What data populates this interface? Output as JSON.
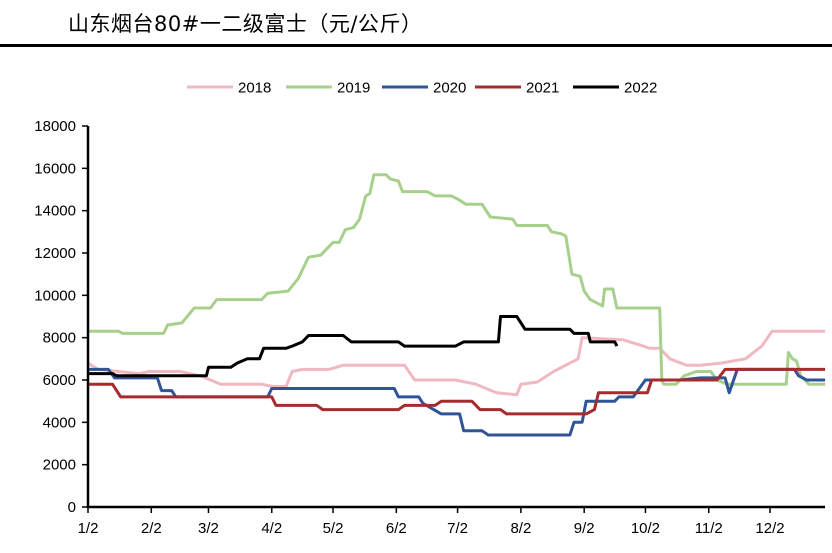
{
  "title": "山东烟台80#一二级富士（元/公斤）",
  "chart_data": {
    "type": "line",
    "title": "山东烟台80#一二级富士（元/公斤）",
    "xlabel": "",
    "ylabel": "",
    "ylim": [
      0,
      18000
    ],
    "yticks": [
      0,
      2000,
      4000,
      6000,
      8000,
      10000,
      12000,
      14000,
      16000,
      18000
    ],
    "xticks": [
      "1/2",
      "2/2",
      "3/2",
      "4/2",
      "5/2",
      "6/2",
      "7/2",
      "8/2",
      "9/2",
      "10/2",
      "11/2",
      "12/2"
    ],
    "xtick_days": [
      0,
      31,
      59,
      90,
      120,
      151,
      181,
      212,
      243,
      273,
      304,
      334
    ],
    "x_unit": "day index from 1/2",
    "xlim": [
      0,
      361
    ],
    "grid": false,
    "legend_position": "top",
    "series": [
      {
        "name": "2018",
        "color": "#f0b8c0",
        "points": [
          [
            0,
            6800
          ],
          [
            5,
            6500
          ],
          [
            15,
            6400
          ],
          [
            25,
            6300
          ],
          [
            30,
            6400
          ],
          [
            45,
            6400
          ],
          [
            55,
            6200
          ],
          [
            65,
            5800
          ],
          [
            85,
            5800
          ],
          [
            90,
            5700
          ],
          [
            97,
            5700
          ],
          [
            100,
            6400
          ],
          [
            105,
            6500
          ],
          [
            118,
            6500
          ],
          [
            125,
            6700
          ],
          [
            155,
            6700
          ],
          [
            160,
            6000
          ],
          [
            180,
            6000
          ],
          [
            190,
            5800
          ],
          [
            200,
            5400
          ],
          [
            210,
            5300
          ],
          [
            212,
            5800
          ],
          [
            220,
            5900
          ],
          [
            228,
            6400
          ],
          [
            236,
            6800
          ],
          [
            240,
            7000
          ],
          [
            242,
            8000
          ],
          [
            262,
            7900
          ],
          [
            272,
            7600
          ],
          [
            275,
            7500
          ],
          [
            280,
            7500
          ],
          [
            285,
            7000
          ],
          [
            293,
            6700
          ],
          [
            300,
            6700
          ],
          [
            310,
            6800
          ],
          [
            322,
            7000
          ],
          [
            330,
            7600
          ],
          [
            335,
            8300
          ],
          [
            361,
            8300
          ]
        ]
      },
      {
        "name": "2019",
        "color": "#a8d08d",
        "points": [
          [
            0,
            8300
          ],
          [
            15,
            8300
          ],
          [
            17,
            8200
          ],
          [
            37,
            8200
          ],
          [
            39,
            8600
          ],
          [
            46,
            8700
          ],
          [
            52,
            9400
          ],
          [
            60,
            9400
          ],
          [
            63,
            9800
          ],
          [
            85,
            9800
          ],
          [
            88,
            10100
          ],
          [
            98,
            10200
          ],
          [
            103,
            10800
          ],
          [
            108,
            11800
          ],
          [
            114,
            11900
          ],
          [
            120,
            12500
          ],
          [
            123,
            12500
          ],
          [
            126,
            13100
          ],
          [
            130,
            13200
          ],
          [
            133,
            13600
          ],
          [
            136,
            14700
          ],
          [
            138,
            14800
          ],
          [
            140,
            15700
          ],
          [
            146,
            15700
          ],
          [
            148,
            15500
          ],
          [
            152,
            15400
          ],
          [
            154,
            14900
          ],
          [
            166,
            14900
          ],
          [
            170,
            14700
          ],
          [
            178,
            14700
          ],
          [
            182,
            14500
          ],
          [
            185,
            14300
          ],
          [
            193,
            14300
          ],
          [
            197,
            13700
          ],
          [
            208,
            13600
          ],
          [
            210,
            13300
          ],
          [
            225,
            13300
          ],
          [
            227,
            13000
          ],
          [
            232,
            12900
          ],
          [
            234,
            12800
          ],
          [
            237,
            11000
          ],
          [
            241,
            10900
          ],
          [
            243,
            10200
          ],
          [
            246,
            9800
          ],
          [
            250,
            9600
          ],
          [
            252,
            9500
          ],
          [
            253,
            10300
          ],
          [
            257,
            10300
          ],
          [
            259,
            9400
          ],
          [
            280,
            9400
          ],
          [
            281,
            6000
          ],
          [
            282,
            5800
          ],
          [
            288,
            5800
          ],
          [
            292,
            6200
          ],
          [
            298,
            6400
          ],
          [
            305,
            6400
          ],
          [
            308,
            6000
          ],
          [
            313,
            5800
          ],
          [
            325,
            5800
          ],
          [
            342,
            5800
          ],
          [
            343,
            7300
          ],
          [
            345,
            7000
          ],
          [
            347,
            6900
          ],
          [
            349,
            6200
          ],
          [
            351,
            6000
          ],
          [
            353,
            5800
          ],
          [
            361,
            5800
          ]
        ]
      },
      {
        "name": "2020",
        "color": "#2f5597",
        "points": [
          [
            0,
            6500
          ],
          [
            10,
            6500
          ],
          [
            13,
            6100
          ],
          [
            34,
            6100
          ],
          [
            36,
            5500
          ],
          [
            41,
            5500
          ],
          [
            43,
            5200
          ],
          [
            88,
            5200
          ],
          [
            90,
            5600
          ],
          [
            150,
            5600
          ],
          [
            152,
            5200
          ],
          [
            162,
            5200
          ],
          [
            164,
            4900
          ],
          [
            173,
            4400
          ],
          [
            182,
            4400
          ],
          [
            184,
            3600
          ],
          [
            193,
            3600
          ],
          [
            196,
            3400
          ],
          [
            236,
            3400
          ],
          [
            238,
            4000
          ],
          [
            242,
            4000
          ],
          [
            244,
            5000
          ],
          [
            258,
            5000
          ],
          [
            260,
            5200
          ],
          [
            267,
            5200
          ],
          [
            273,
            6000
          ],
          [
            290,
            6000
          ],
          [
            300,
            6100
          ],
          [
            312,
            6100
          ],
          [
            314,
            5400
          ],
          [
            318,
            6500
          ],
          [
            346,
            6500
          ],
          [
            348,
            6200
          ],
          [
            352,
            6000
          ],
          [
            361,
            6000
          ]
        ]
      },
      {
        "name": "2021",
        "color": "#a62b2f",
        "points": [
          [
            0,
            5800
          ],
          [
            12,
            5800
          ],
          [
            16,
            5200
          ],
          [
            90,
            5200
          ],
          [
            92,
            4800
          ],
          [
            112,
            4800
          ],
          [
            115,
            4600
          ],
          [
            152,
            4600
          ],
          [
            155,
            4800
          ],
          [
            170,
            4800
          ],
          [
            173,
            5000
          ],
          [
            188,
            5000
          ],
          [
            192,
            4600
          ],
          [
            202,
            4600
          ],
          [
            205,
            4400
          ],
          [
            244,
            4400
          ],
          [
            248,
            4600
          ],
          [
            250,
            5400
          ],
          [
            274,
            5400
          ],
          [
            276,
            6000
          ],
          [
            308,
            6000
          ],
          [
            312,
            6500
          ],
          [
            361,
            6500
          ]
        ]
      },
      {
        "name": "2022",
        "color": "#000000",
        "points": [
          [
            0,
            6300
          ],
          [
            12,
            6300
          ],
          [
            14,
            6200
          ],
          [
            58,
            6200
          ],
          [
            59,
            6600
          ],
          [
            70,
            6600
          ],
          [
            73,
            6800
          ],
          [
            78,
            7000
          ],
          [
            84,
            7000
          ],
          [
            86,
            7500
          ],
          [
            97,
            7500
          ],
          [
            100,
            7600
          ],
          [
            105,
            7800
          ],
          [
            108,
            8100
          ],
          [
            125,
            8100
          ],
          [
            129,
            7800
          ],
          [
            152,
            7800
          ],
          [
            155,
            7600
          ],
          [
            180,
            7600
          ],
          [
            184,
            7800
          ],
          [
            201,
            7800
          ],
          [
            202,
            9000
          ],
          [
            210,
            9000
          ],
          [
            214,
            8400
          ],
          [
            236,
            8400
          ],
          [
            238,
            8200
          ],
          [
            245,
            8200
          ],
          [
            246,
            7800
          ],
          [
            258,
            7800
          ],
          [
            259,
            7600
          ]
        ]
      }
    ]
  },
  "legend": {
    "items": [
      {
        "label": "2018",
        "color": "#f0b8c0"
      },
      {
        "label": "2019",
        "color": "#a8d08d"
      },
      {
        "label": "2020",
        "color": "#2f5597"
      },
      {
        "label": "2021",
        "color": "#a62b2f"
      },
      {
        "label": "2022",
        "color": "#000000"
      }
    ]
  }
}
